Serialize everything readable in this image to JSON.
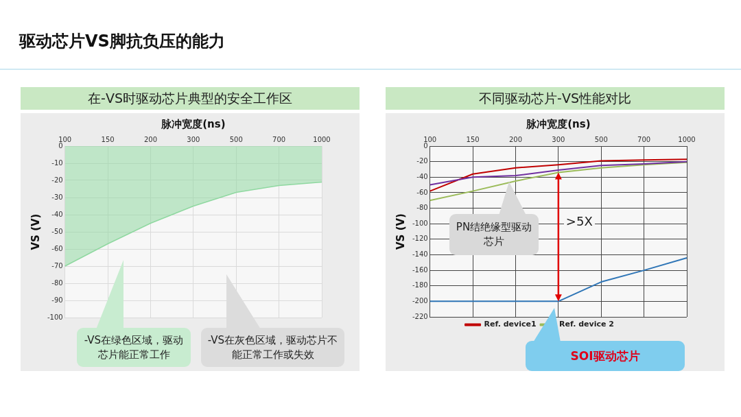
{
  "chart_data": [
    {
      "type": "area",
      "title": "驱动芯片VS脚抗负压的能力",
      "subtitle": "在-VS时驱动芯片典型的安全工作区",
      "xlabel": "脉冲宽度(ns)",
      "ylabel": "VS (V)",
      "categories": [
        "100",
        "150",
        "200",
        "300",
        "500",
        "700",
        "1000"
      ],
      "series": [
        {
          "color": "#8fd8a0",
          "values": [
            -70,
            -57,
            -45,
            -35,
            -27,
            -23,
            -21
          ]
        }
      ],
      "ylim": [
        -100,
        0
      ],
      "yticks": [
        -100,
        -90,
        -80,
        -70,
        -60,
        -50,
        -40,
        -30,
        -20,
        -10,
        0
      ],
      "grid": true,
      "legend": false,
      "annotations": [
        "-VS在绿色区域，驱动芯片能正常工作",
        "-VS在灰色区域，驱动芯片不能正常工作或失效"
      ]
    },
    {
      "type": "line",
      "title": "不同驱动芯片-VS性能对比",
      "xlabel": "脉冲宽度(ns)",
      "ylabel": "VS (V)",
      "categories": [
        "100",
        "150",
        "200",
        "300",
        "500",
        "700",
        "1000"
      ],
      "series": [
        {
          "color": "#7030a0",
          "values": [
            -50,
            -40,
            -38,
            -31,
            -25,
            -23,
            -20
          ]
        },
        {
          "name": "Ref. device1",
          "color": "#c00000",
          "values": [
            -58,
            -36,
            -28,
            -24,
            -19,
            -18,
            -17
          ]
        },
        {
          "name": "Ref. device 2",
          "color": "#9bbb59",
          "values": [
            -70,
            -58,
            -45,
            -34,
            -28,
            -24,
            -21
          ]
        },
        {
          "color": "#2e75b6",
          "values": [
            -200,
            -200,
            -200,
            -200,
            -175,
            -160,
            -144
          ]
        }
      ],
      "ylim": [
        -220,
        0
      ],
      "yticks": [
        -220,
        -200,
        -180,
        -160,
        -140,
        -120,
        -100,
        -80,
        -60,
        -40,
        -20,
        0
      ],
      "grid": true,
      "legend": "bottom",
      "marker": "none",
      "annotations": [
        "PN结绝缘型驱动芯片",
        ">5X",
        "SOI驱动芯片"
      ]
    }
  ]
}
